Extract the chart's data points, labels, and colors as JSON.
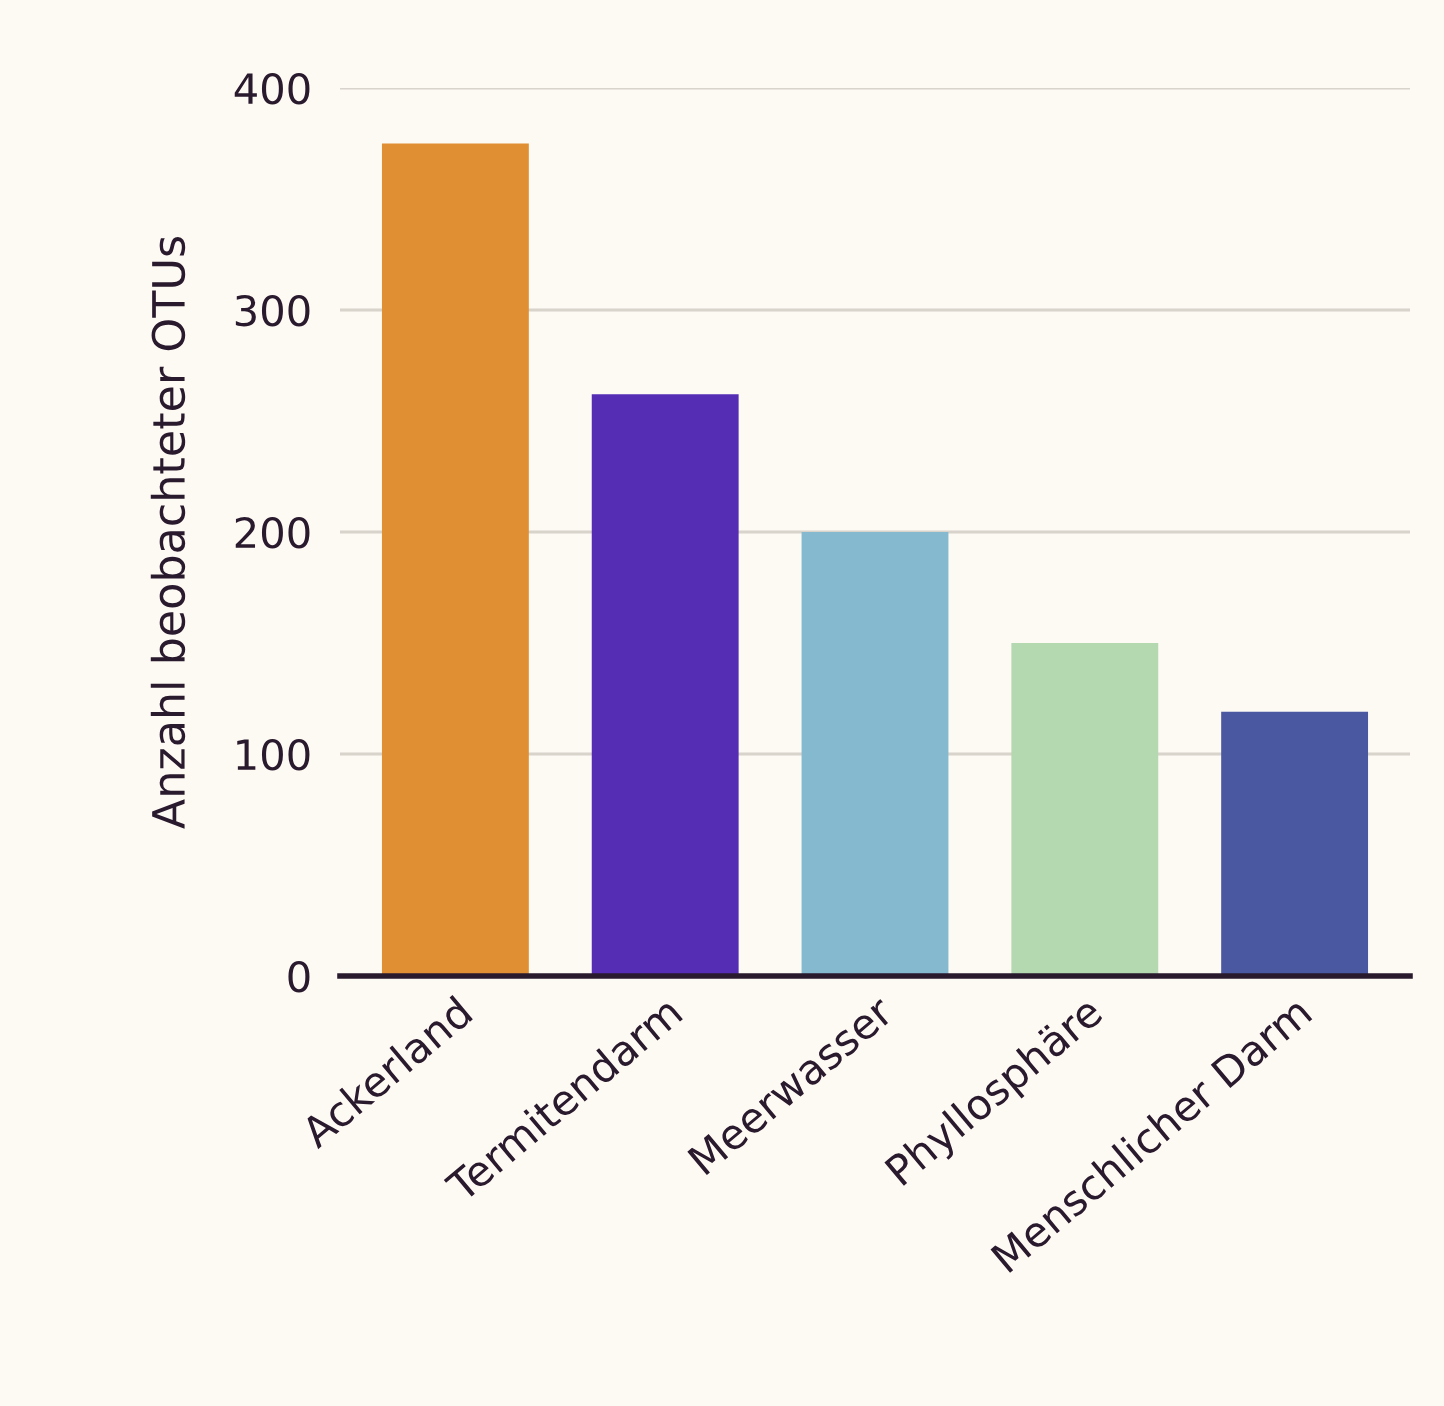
{
  "chart_data": {
    "type": "bar",
    "ylabel": "Anzahl beobachteter OTUs",
    "categories": [
      "Ackerland",
      "Termitendarm",
      "Meerwasser",
      "Phyllosphäre",
      "Menschlicher Darm"
    ],
    "values": [
      375,
      262,
      200,
      150,
      119
    ],
    "colors": [
      "#e08f32",
      "#552db5",
      "#85b9d0",
      "#b4d8b0",
      "#4a58a2"
    ],
    "ylim": [
      0,
      400
    ],
    "yticks": [
      0,
      100,
      200,
      300,
      400
    ],
    "grid": "y"
  }
}
